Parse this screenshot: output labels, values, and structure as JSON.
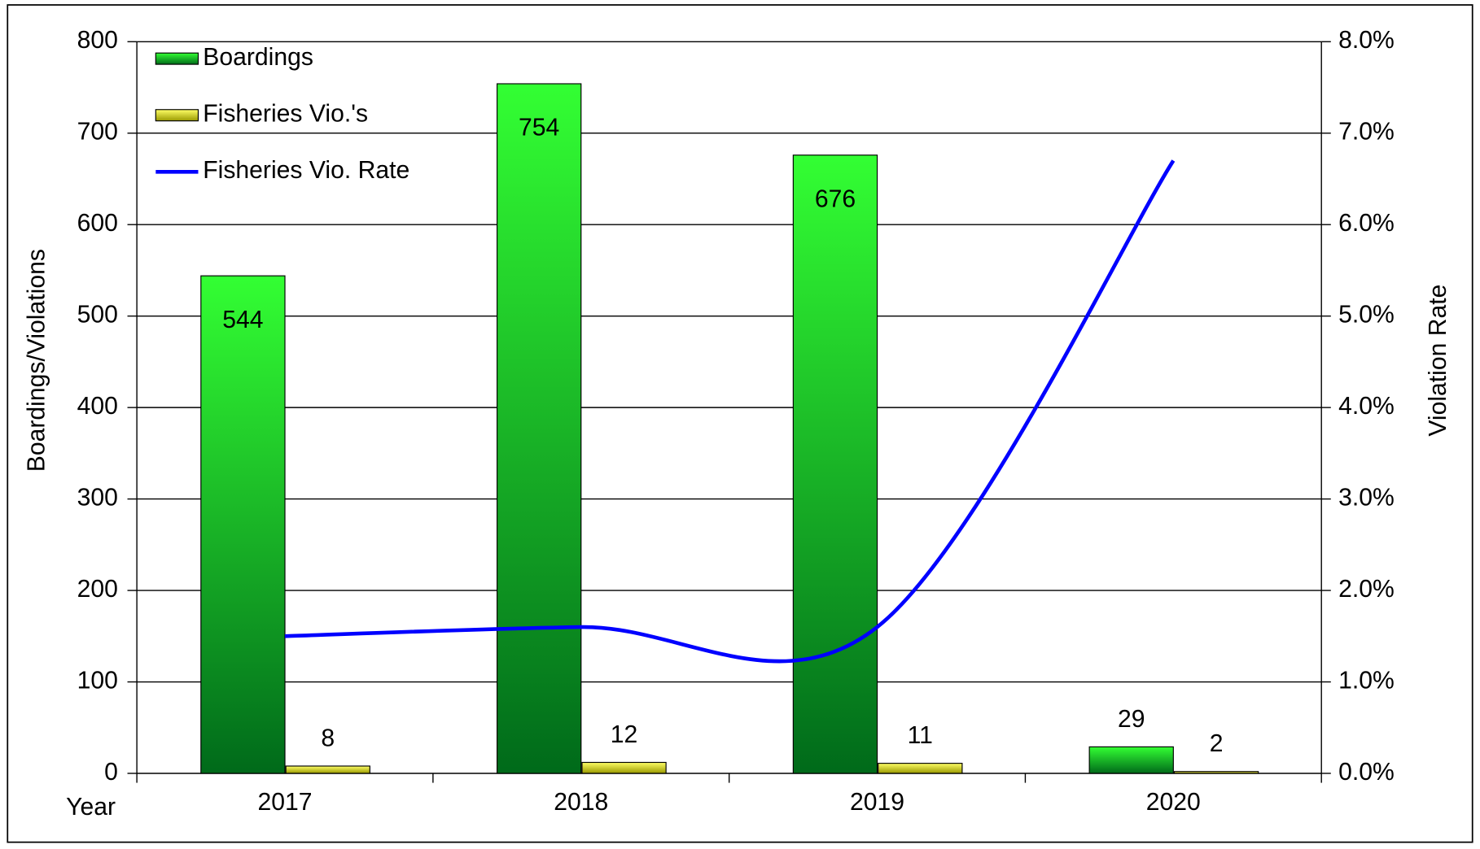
{
  "chart_data": {
    "type": "bar",
    "categories": [
      "2017",
      "2018",
      "2019",
      "2020"
    ],
    "x_label": "Year",
    "y_label": "Boardings/Violations",
    "y2_label": "Violation Rate",
    "series": [
      {
        "name": "Boardings",
        "type": "bar",
        "color": "#22dd22",
        "values": [
          544,
          754,
          676,
          29
        ]
      },
      {
        "name": "Fisheries Vio.'s",
        "type": "bar",
        "color": "#dddd00",
        "values": [
          8,
          12,
          11,
          2
        ]
      },
      {
        "name": "Fisheries Vio. Rate",
        "type": "line",
        "axis": "y2",
        "color": "#0000ff",
        "values": [
          1.5,
          1.6,
          1.6,
          6.7
        ]
      }
    ],
    "ylim": [
      0,
      800
    ],
    "yticks": [
      0,
      100,
      200,
      300,
      400,
      500,
      600,
      700,
      800
    ],
    "y2lim": [
      0,
      8
    ],
    "y2ticks": [
      {
        "value": 0,
        "label": "0.0%"
      },
      {
        "value": 1,
        "label": "1.0%"
      },
      {
        "value": 2,
        "label": "2.0%"
      },
      {
        "value": 3,
        "label": "3.0%"
      },
      {
        "value": 4,
        "label": "4.0%"
      },
      {
        "value": 5,
        "label": "5.0%"
      },
      {
        "value": 6,
        "label": "6.0%"
      },
      {
        "value": 7,
        "label": "7.0%"
      },
      {
        "value": 8,
        "label": "8.0%"
      }
    ],
    "grid": true,
    "legend": "upper left"
  }
}
